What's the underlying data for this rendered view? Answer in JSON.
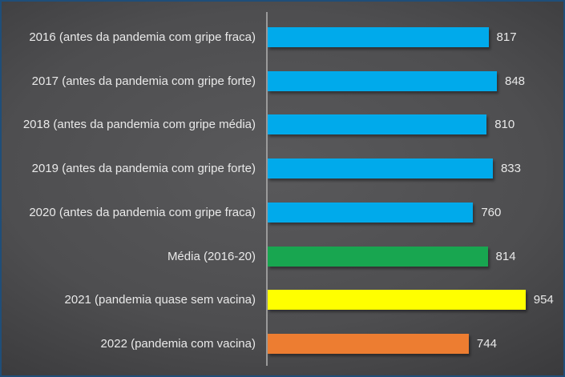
{
  "chart_data": {
    "type": "bar",
    "orientation": "horizontal",
    "title": "",
    "xlabel": "",
    "ylabel": "",
    "grid": false,
    "legend": false,
    "data_labels": true,
    "xlim": [
      0,
      1100
    ],
    "categories": [
      "2016 (antes da pandemia com gripe fraca)",
      "2017 (antes da pandemia com gripe forte)",
      "2018 (antes da pandemia com gripe média)",
      "2019 (antes da pandemia com gripe forte)",
      "2020 (antes da pandemia com gripe fraca)",
      "Média (2016-20)",
      "2021 (pandemia quase sem vacina)",
      "2022 (pandemia com vacina)"
    ],
    "values": [
      817,
      848,
      810,
      833,
      760,
      814,
      954,
      744
    ],
    "bar_colors": [
      "#00AAEB",
      "#00AAEB",
      "#00AAEB",
      "#00AAEB",
      "#00AAEB",
      "#18A650",
      "#FFFF00",
      "#ED7D31"
    ]
  },
  "theme": {
    "background_center": "#59595b",
    "background_edge": "#242426",
    "frame_color": "#1F4E79",
    "axis_line_color": "#9a9a9a",
    "text_color": "#e9e9e9"
  }
}
